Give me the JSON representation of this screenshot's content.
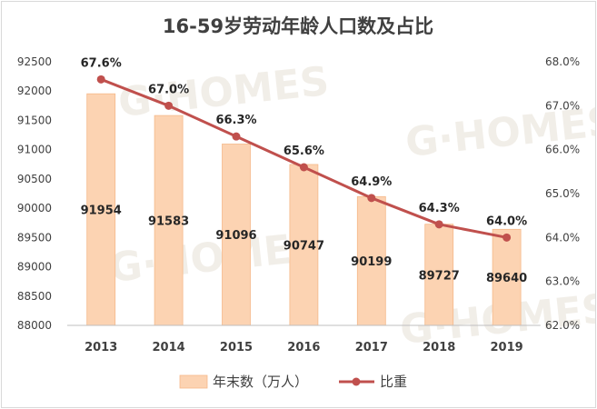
{
  "chart_data": {
    "type": "bar",
    "title": "16-59岁劳动年龄人口数及占比",
    "categories": [
      "2013",
      "2014",
      "2015",
      "2016",
      "2017",
      "2018",
      "2019"
    ],
    "series": [
      {
        "name": "年末数（万人）",
        "type": "bar",
        "axis": "left",
        "values": [
          91954,
          91583,
          91096,
          90747,
          90199,
          89727,
          89640
        ],
        "labels": [
          "91954",
          "91583",
          "91096",
          "90747",
          "90199",
          "89727",
          "89640"
        ],
        "color": "#fcd3b2"
      },
      {
        "name": "比重",
        "type": "line",
        "axis": "right",
        "values": [
          67.6,
          67.0,
          66.3,
          65.6,
          64.9,
          64.3,
          64.0
        ],
        "labels": [
          "67.6%",
          "67.0%",
          "66.3%",
          "65.6%",
          "64.9%",
          "64.3%",
          "64.0%"
        ],
        "color": "#c0504d"
      }
    ],
    "y_left": {
      "range": [
        88000,
        92500
      ],
      "ticks": [
        "88000",
        "88500",
        "89000",
        "89500",
        "90000",
        "90500",
        "91000",
        "91500",
        "92000",
        "92500"
      ]
    },
    "y_right": {
      "range": [
        62.0,
        68.0
      ],
      "ticks": [
        "62.0%",
        "63.0%",
        "64.0%",
        "65.0%",
        "66.0%",
        "67.0%",
        "68.0%"
      ]
    },
    "grid": false,
    "legend": "bottom",
    "watermark": "G·HOMES"
  }
}
